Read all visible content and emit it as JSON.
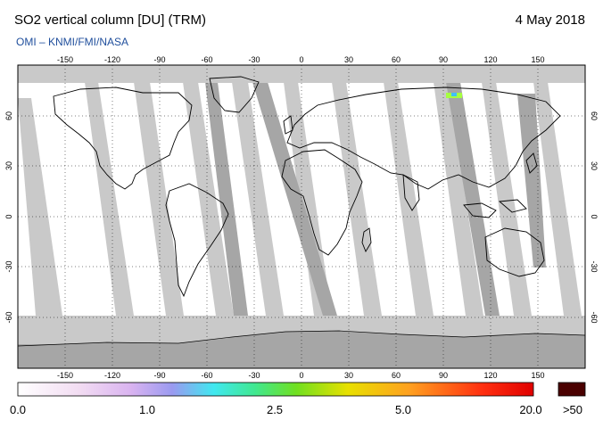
{
  "header": {
    "title": "SO2 vertical column [DU] (TRM)",
    "date": "4 May 2018",
    "credit": "OMI  –  KNMI/FMI/NASA"
  },
  "map": {
    "lon_ticks": [
      "-150",
      "-120",
      "-90",
      "-60",
      "-30",
      "0",
      "30",
      "60",
      "90",
      "120",
      "150"
    ],
    "lat_ticks": [
      "60",
      "30",
      "0",
      "-30",
      "-60"
    ],
    "colors": {
      "no_data": "#c9c9c9",
      "low_sun": "#a6a6a6",
      "clean": "#ffffff",
      "coast": "#000000"
    }
  },
  "colorbar": {
    "labels": [
      "0.0",
      "1.0",
      "2.5",
      "5.0",
      "20.0"
    ],
    "overflow_label": ">50",
    "overflow_color": "#4a0000"
  }
}
